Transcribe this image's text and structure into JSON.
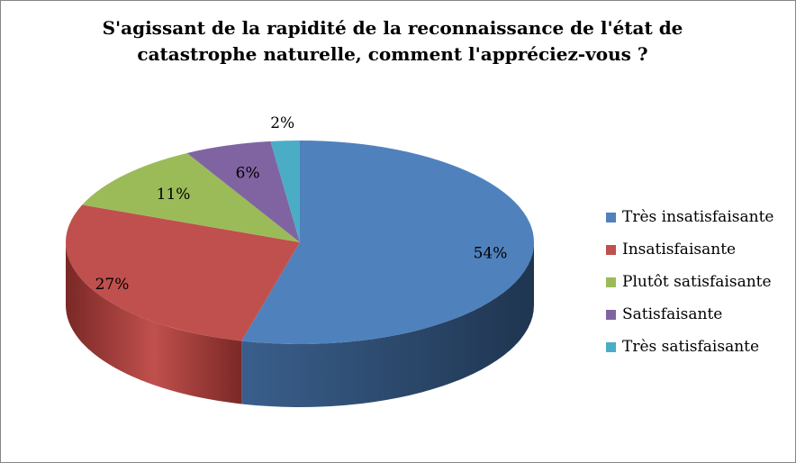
{
  "chart_data": {
    "type": "pie",
    "title": "S'agissant de la rapidité de la reconnaissance de l'état de catastrophe naturelle, comment l'appréciez-vous ?",
    "legend_position": "right",
    "slices": [
      {
        "name": "Très insatisfaisante",
        "value": 54,
        "label": "54%",
        "color": "#4F81BD",
        "dark": "#1F3550"
      },
      {
        "name": "Insatisfaisante",
        "value": 27,
        "label": "27%",
        "color": "#C0504D",
        "dark": "#7A2826"
      },
      {
        "name": "Plutôt satisfaisante",
        "value": 11,
        "label": "11%",
        "color": "#9BBB59",
        "dark": "#5E7530"
      },
      {
        "name": "Satisfaisante",
        "value": 6,
        "label": "6%",
        "color": "#8064A2",
        "dark": "#4A3763"
      },
      {
        "name": "Très satisfaisante",
        "value": 2,
        "label": "2%",
        "color": "#4BACC6",
        "dark": "#21687B"
      }
    ]
  }
}
